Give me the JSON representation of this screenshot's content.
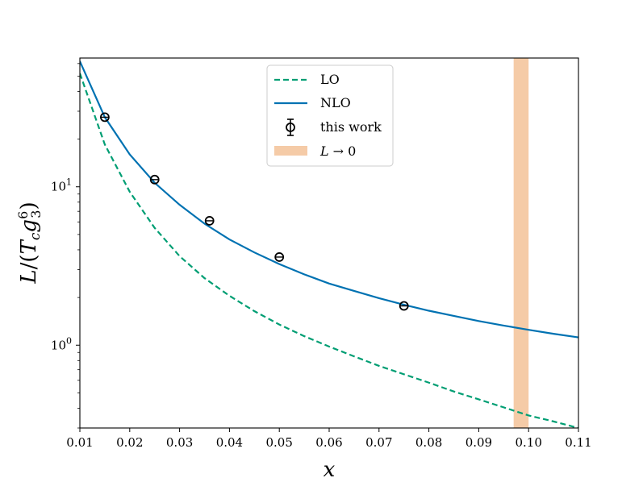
{
  "chart_data": {
    "type": "line",
    "xlabel": "x",
    "ylabel": "L/(T_c g_3^6)",
    "ylabel_parts": {
      "L": "L",
      "slash": "/(",
      "T": "T",
      "c": "c",
      "g": "g",
      "sub3": "3",
      "sup6": "6",
      "close": ")"
    },
    "xlim": [
      0.01,
      0.11
    ],
    "ylim": [
      0.3,
      65
    ],
    "yscale": "log",
    "x_ticks": [
      "0.01",
      "0.02",
      "0.03",
      "0.04",
      "0.05",
      "0.06",
      "0.07",
      "0.08",
      "0.09",
      "0.10",
      "0.11"
    ],
    "x_tick_values": [
      0.01,
      0.02,
      0.03,
      0.04,
      0.05,
      0.06,
      0.07,
      0.08,
      0.09,
      0.1,
      0.11
    ],
    "y_major_ticks": [
      {
        "value": 1,
        "base": "10",
        "exp": "0"
      },
      {
        "value": 10,
        "base": "10",
        "exp": "1"
      }
    ],
    "series": [
      {
        "name": "LO",
        "style": "dashed",
        "color": "#009e73",
        "x": [
          0.01,
          0.015,
          0.02,
          0.025,
          0.03,
          0.035,
          0.04,
          0.045,
          0.05,
          0.055,
          0.06,
          0.065,
          0.07,
          0.075,
          0.08,
          0.085,
          0.09,
          0.095,
          0.1,
          0.105,
          0.11
        ],
        "y": [
          52,
          18.5,
          9.3,
          5.5,
          3.65,
          2.65,
          2.05,
          1.64,
          1.35,
          1.14,
          0.98,
          0.85,
          0.74,
          0.655,
          0.58,
          0.51,
          0.455,
          0.405,
          0.36,
          0.33,
          0.3
        ]
      },
      {
        "name": "NLO",
        "style": "solid",
        "color": "#0072b2",
        "x": [
          0.01,
          0.015,
          0.02,
          0.025,
          0.03,
          0.035,
          0.04,
          0.045,
          0.05,
          0.055,
          0.06,
          0.065,
          0.07,
          0.075,
          0.08,
          0.085,
          0.09,
          0.095,
          0.1,
          0.105,
          0.11
        ],
        "y": [
          62,
          27.5,
          16.0,
          10.6,
          7.7,
          5.85,
          4.65,
          3.85,
          3.25,
          2.8,
          2.45,
          2.2,
          1.98,
          1.8,
          1.65,
          1.53,
          1.42,
          1.33,
          1.25,
          1.18,
          1.12
        ]
      },
      {
        "name": "this work",
        "style": "points",
        "color": "#000000",
        "x": [
          0.015,
          0.025,
          0.036,
          0.05,
          0.075
        ],
        "y": [
          27.5,
          11.1,
          6.1,
          3.6,
          1.77
        ]
      }
    ],
    "band": {
      "name": "L → 0",
      "name_L": "L",
      "name_arrow": "→ 0",
      "x_range": [
        0.097,
        0.1
      ],
      "color": "#f5cba7"
    },
    "legend": {
      "placement": "top-center",
      "entries": [
        "LO",
        "NLO",
        "this work",
        "L → 0"
      ]
    }
  }
}
